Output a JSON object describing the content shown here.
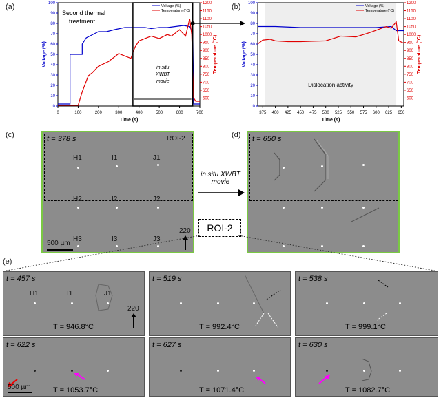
{
  "panels": {
    "a": "(a)",
    "b": "(b)",
    "c": "(c)",
    "d": "(d)",
    "e": "(e)"
  },
  "chart_data": [
    {
      "type": "line",
      "panel": "a",
      "xlabel": "Time (s)",
      "ylabel_left": "Voltage (%)",
      "ylabel_right": "Temperature (°C)",
      "xlim": [
        0,
        700
      ],
      "ylim_left": [
        0,
        100
      ],
      "ylim_right": [
        550,
        1200
      ],
      "xticks": [
        "0",
        "100",
        "200",
        "300",
        "400",
        "500",
        "600",
        "700"
      ],
      "yticks_left": [
        "0",
        "10",
        "20",
        "30",
        "40",
        "50",
        "60",
        "70",
        "80",
        "90",
        "100"
      ],
      "yticks_right": [
        "600",
        "650",
        "700",
        "750",
        "800",
        "850",
        "900",
        "950",
        "1000",
        "1050",
        "1100",
        "1150",
        "1200"
      ],
      "legend": [
        "Voltage (%)",
        "Temperature (°C)"
      ],
      "annotation_title": "Second thermal treatment",
      "annotation_box": "in situ XWBT movie",
      "colors": {
        "voltage": "#0000cc",
        "temperature": "#e00000"
      },
      "series": [
        {
          "name": "Voltage (%)",
          "x": [
            0,
            60,
            60,
            120,
            120,
            140,
            160,
            180,
            200,
            240,
            280,
            330,
            360,
            370,
            400,
            430,
            460,
            500,
            540,
            580,
            620,
            650,
            660,
            665,
            670,
            680,
            690,
            700
          ],
          "values": [
            2,
            2,
            50,
            50,
            60,
            66,
            68,
            70,
            72,
            72,
            74,
            76,
            76,
            76,
            76,
            76,
            75,
            76,
            76,
            77,
            78,
            77,
            73,
            73,
            2,
            2,
            2,
            2
          ]
        },
        {
          "name": "Temperature (°C)",
          "x": [
            0,
            100,
            120,
            150,
            170,
            200,
            250,
            300,
            340,
            360,
            380,
            400,
            430,
            460,
            500,
            540,
            560,
            600,
            630,
            650,
            655,
            660,
            670,
            680,
            690,
            700
          ],
          "values": [
            555,
            555,
            640,
            740,
            760,
            800,
            830,
            880,
            860,
            850,
            920,
            960,
            975,
            990,
            975,
            1000,
            990,
            1030,
            990,
            1100,
            1050,
            1000,
            600,
            580,
            580,
            580
          ]
        }
      ]
    },
    {
      "type": "line",
      "panel": "b",
      "xlabel": "Time (s)",
      "ylabel_left": "Voltage (%)",
      "ylabel_right": "Temperature (°C)",
      "xlim": [
        365,
        655
      ],
      "ylim_left": [
        0,
        100
      ],
      "ylim_right": [
        550,
        1200
      ],
      "xticks": [
        "375",
        "400",
        "425",
        "450",
        "475",
        "500",
        "525",
        "550",
        "575",
        "600",
        "625",
        "650"
      ],
      "yticks_left": [
        "0",
        "10",
        "20",
        "30",
        "40",
        "50",
        "60",
        "70",
        "80",
        "90",
        "100"
      ],
      "yticks_right": [
        "600",
        "650",
        "700",
        "750",
        "800",
        "850",
        "900",
        "950",
        "1000",
        "1050",
        "1100",
        "1150",
        "1200"
      ],
      "legend": [
        "Voltage (%)",
        "Temperature (°C)"
      ],
      "annotation": "Dislocation activity",
      "series": [
        {
          "name": "Voltage (%)",
          "x": [
            365,
            400,
            450,
            500,
            550,
            600,
            630,
            640,
            655
          ],
          "values": [
            77,
            77,
            76,
            76,
            76,
            76,
            77,
            73,
            73
          ]
        },
        {
          "name": "Temperature (°C)",
          "x": [
            365,
            375,
            390,
            400,
            425,
            450,
            475,
            500,
            530,
            560,
            590,
            620,
            630,
            640,
            645,
            655
          ],
          "values": [
            940,
            965,
            970,
            960,
            955,
            955,
            958,
            960,
            990,
            985,
            1015,
            1050,
            1040,
            1080,
            960,
            945
          ]
        }
      ]
    }
  ],
  "movie_label": "in situ XWBT movie",
  "roi_label": "ROI-2",
  "panel_c": {
    "time": "t = 378 s",
    "roi": "ROI-2",
    "labels": [
      "H1",
      "I1",
      "J1",
      "H2",
      "I2",
      "J2",
      "H3",
      "I3",
      "J3"
    ],
    "g": "220",
    "scale": "500 µm"
  },
  "panel_d": {
    "time": "t = 650 s"
  },
  "frames": [
    {
      "time": "t = 457 s",
      "temp": "T = 946.8°C",
      "labels": [
        "H1",
        "I1",
        "J1"
      ],
      "g": "220"
    },
    {
      "time": "t = 519 s",
      "temp": "T = 992.4°C"
    },
    {
      "time": "t = 538 s",
      "temp": "T = 999.1°C"
    },
    {
      "time": "t = 622 s",
      "temp": "T = 1053.7°C",
      "scale": "500 µm"
    },
    {
      "time": "t = 627 s",
      "temp": "T = 1071.4°C"
    },
    {
      "time": "t = 630 s",
      "temp": "T = 1082.7°C"
    }
  ]
}
